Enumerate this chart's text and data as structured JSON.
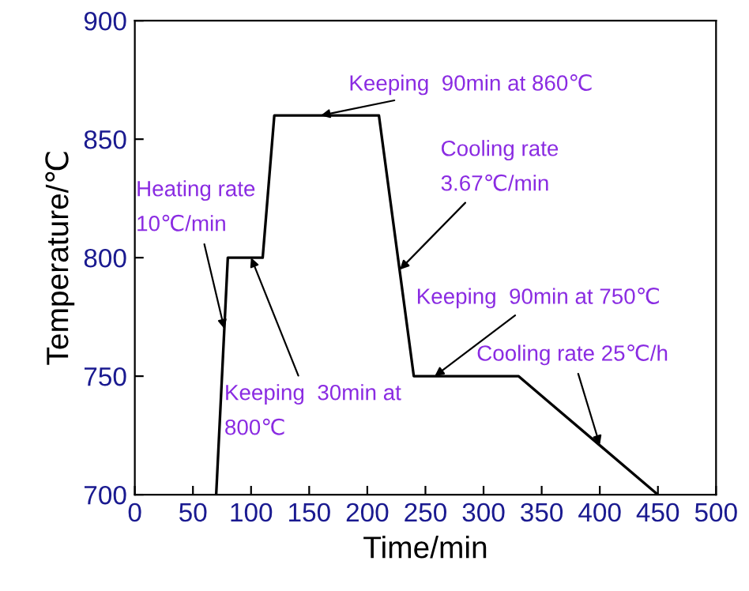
{
  "chart_data": {
    "type": "line",
    "xlabel": "Time/min",
    "ylabel": "Temperature/℃",
    "x": [
      70,
      80,
      110,
      120,
      210,
      240,
      330,
      450
    ],
    "series": [
      {
        "color": "#000000",
        "values": [
          700,
          800,
          800,
          860,
          860,
          750,
          750,
          700
        ]
      }
    ],
    "xlim": [
      0,
      500
    ],
    "ylim": [
      700,
      900
    ],
    "xticks": [
      0,
      50,
      100,
      150,
      200,
      250,
      300,
      350,
      400,
      450,
      500
    ],
    "yticks": [
      700,
      750,
      800,
      850,
      900
    ],
    "annotations": [
      {
        "text": "Heating rate\n10℃/min",
        "x": 77,
        "y": 770
      },
      {
        "text": "Keeping  30min at\n800℃",
        "x": 100,
        "y": 800
      },
      {
        "text": "Keeping  90min at 860℃",
        "x": 160,
        "y": 860
      },
      {
        "text": "Cooling rate\n3.67℃/min",
        "x": 228,
        "y": 795
      },
      {
        "text": "Keeping  90min at 750℃",
        "x": 258,
        "y": 750
      },
      {
        "text": "Cooling rate 25℃/h",
        "x": 400,
        "y": 721
      }
    ],
    "grid": false,
    "legend": false,
    "marker": "none",
    "line_style": "solid"
  }
}
